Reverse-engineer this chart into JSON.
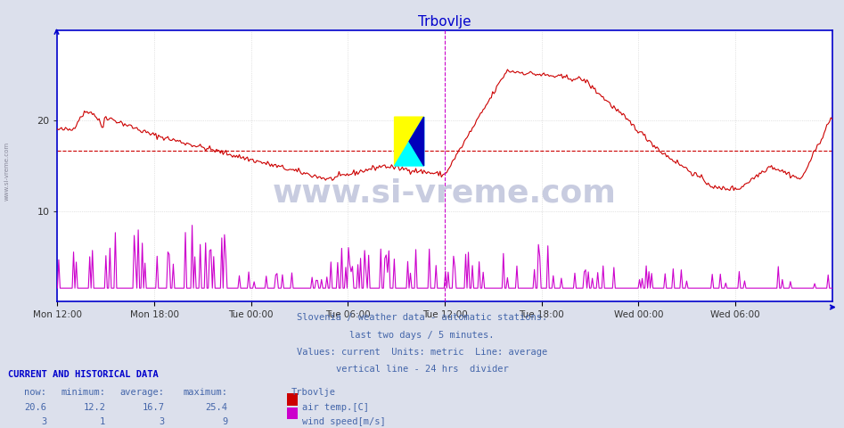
{
  "title": "Trbovlje",
  "title_color": "#0000cc",
  "bg_color": "#dce0ec",
  "plot_bg_color": "#ffffff",
  "grid_color": "#cccccc",
  "x_labels": [
    "Mon 12:00",
    "Mon 18:00",
    "Tue 00:00",
    "Tue 06:00",
    "Tue 12:00",
    "Tue 18:00",
    "Wed 00:00",
    "Wed 06:00"
  ],
  "y_min": 0,
  "y_max": 30,
  "y_ticks": [
    10,
    20
  ],
  "avg_line_value": 16.7,
  "avg_line_color": "#cc0000",
  "temp_color": "#cc0000",
  "wind_color": "#cc00cc",
  "vline_color": "#cc00cc",
  "border_color": "#0000cc",
  "footnote_lines": [
    "Slovenia / weather data - automatic stations.",
    "last two days / 5 minutes.",
    "Values: current  Units: metric  Line: average",
    "vertical line - 24 hrs  divider"
  ],
  "footnote_color": "#4466aa",
  "legend_title": "CURRENT AND HISTORICAL DATA",
  "legend_color": "#0000cc",
  "table_headers": [
    "now:",
    "minimum:",
    "average:",
    "maximum:",
    "Trbovlje"
  ],
  "table_row1": [
    "20.6",
    "12.2",
    "16.7",
    "25.4",
    "air temp.[C]"
  ],
  "table_row2": [
    "3",
    "1",
    "3",
    "9",
    "wind speed[m/s]"
  ],
  "table_color": "#4466aa",
  "watermark_text": "www.si-vreme.com",
  "watermark_color": "#c8cce0",
  "logo_yellow": "#ffff00",
  "logo_cyan": "#00ffff",
  "logo_blue": "#0000bb",
  "num_points": 576,
  "vline_positions": [
    0.5,
    1.0
  ]
}
